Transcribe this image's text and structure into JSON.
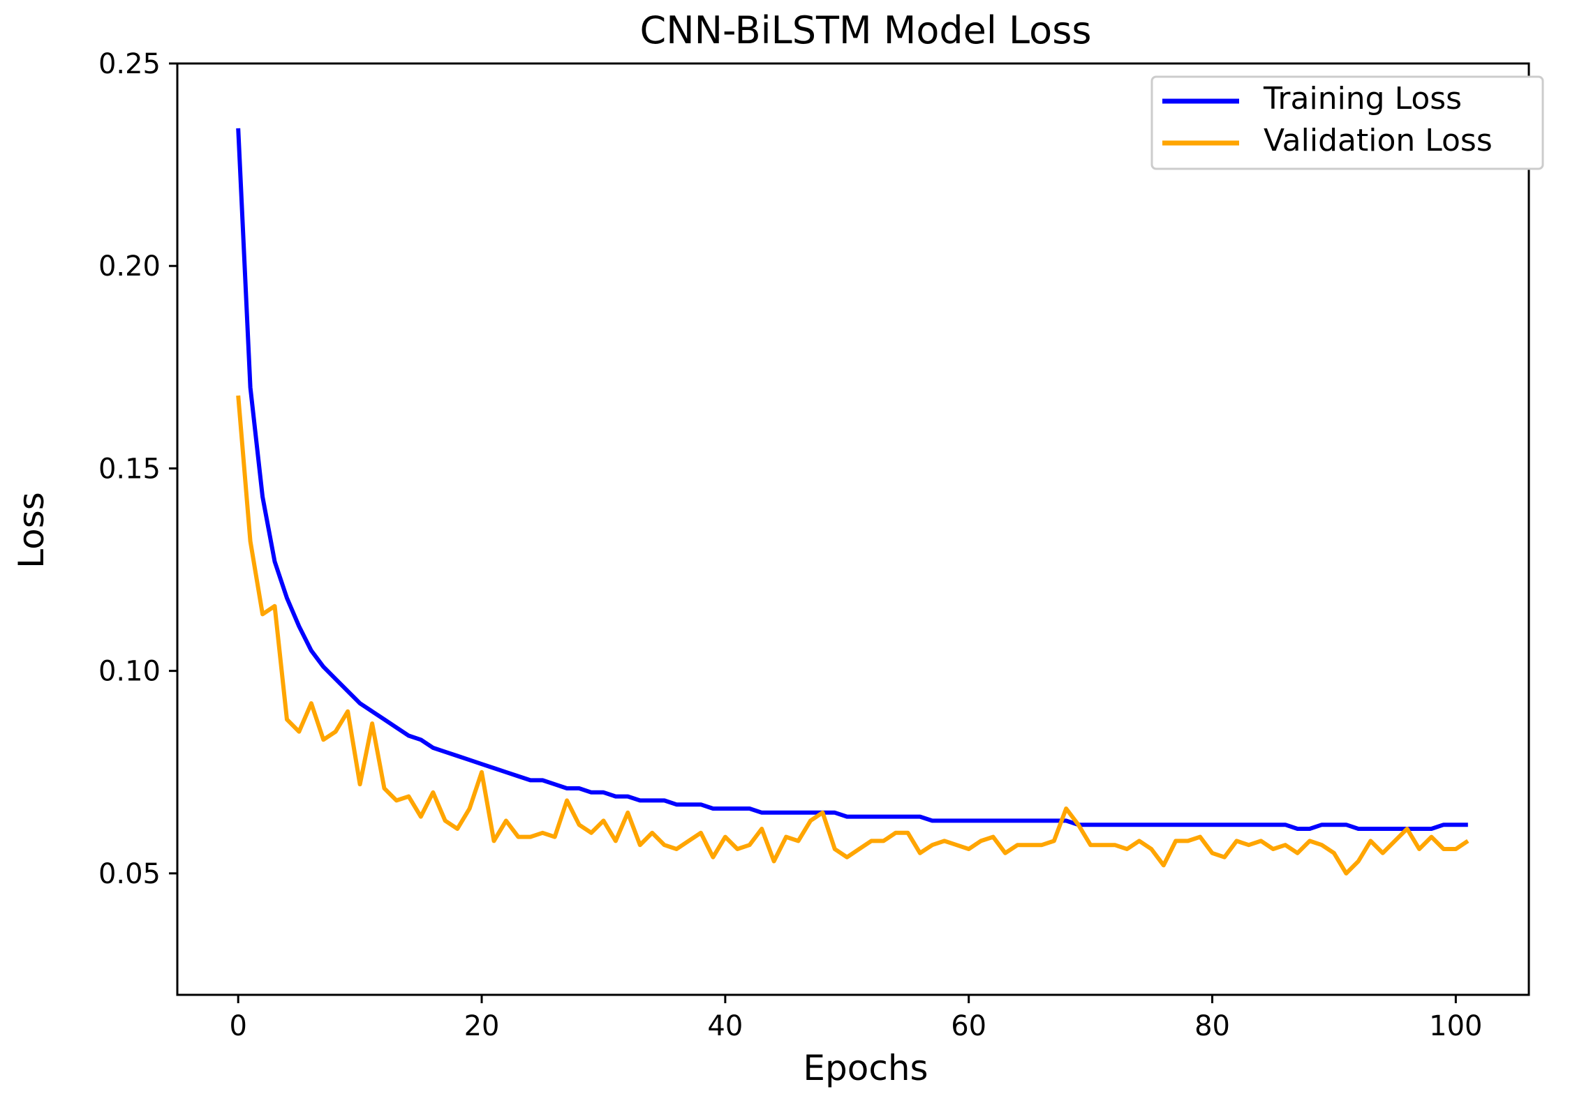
{
  "chart_data": {
    "type": "line",
    "title": "CNN-BiLSTM Model Loss",
    "xlabel": "Epochs",
    "ylabel": "Loss",
    "xlim": [
      -5,
      106
    ],
    "ylim": [
      0.02,
      0.25
    ],
    "xticks": [
      0,
      20,
      40,
      60,
      80,
      100
    ],
    "xtick_labels": [
      "0",
      "20",
      "40",
      "60",
      "80",
      "100"
    ],
    "yticks": [
      0.05,
      0.1,
      0.15,
      0.2,
      0.25
    ],
    "ytick_labels": [
      "0.05",
      "0.10",
      "0.15",
      "0.20",
      "0.25"
    ],
    "grid": false,
    "legend_position": "top-right",
    "series": [
      {
        "name": "Training Loss",
        "color": "#0000ff",
        "x": [
          0,
          1,
          2,
          3,
          4,
          5,
          6,
          7,
          8,
          9,
          10,
          11,
          12,
          13,
          14,
          15,
          16,
          17,
          18,
          19,
          20,
          21,
          22,
          23,
          24,
          25,
          26,
          27,
          28,
          29,
          30,
          31,
          32,
          33,
          34,
          35,
          36,
          37,
          38,
          39,
          40,
          41,
          42,
          43,
          44,
          45,
          46,
          47,
          48,
          49,
          50,
          51,
          52,
          53,
          54,
          55,
          56,
          57,
          58,
          59,
          60,
          61,
          62,
          63,
          64,
          65,
          66,
          67,
          68,
          69,
          70,
          71,
          72,
          73,
          74,
          75,
          76,
          77,
          78,
          79,
          80,
          81,
          82,
          83,
          84,
          85,
          86,
          87,
          88,
          89,
          90,
          91,
          92,
          93,
          94,
          95,
          96,
          97,
          98,
          99,
          100,
          101
        ],
        "values": [
          0.234,
          0.17,
          0.143,
          0.127,
          0.118,
          0.111,
          0.105,
          0.101,
          0.098,
          0.095,
          0.092,
          0.09,
          0.088,
          0.086,
          0.084,
          0.083,
          0.081,
          0.08,
          0.079,
          0.078,
          0.077,
          0.076,
          0.075,
          0.074,
          0.073,
          0.073,
          0.072,
          0.071,
          0.071,
          0.07,
          0.07,
          0.069,
          0.069,
          0.068,
          0.068,
          0.068,
          0.067,
          0.067,
          0.067,
          0.066,
          0.066,
          0.066,
          0.066,
          0.065,
          0.065,
          0.065,
          0.065,
          0.065,
          0.065,
          0.065,
          0.064,
          0.064,
          0.064,
          0.064,
          0.064,
          0.064,
          0.064,
          0.063,
          0.063,
          0.063,
          0.063,
          0.063,
          0.063,
          0.063,
          0.063,
          0.063,
          0.063,
          0.063,
          0.063,
          0.062,
          0.062,
          0.062,
          0.062,
          0.062,
          0.062,
          0.062,
          0.062,
          0.062,
          0.062,
          0.062,
          0.062,
          0.062,
          0.062,
          0.062,
          0.062,
          0.062,
          0.062,
          0.061,
          0.061,
          0.062,
          0.062,
          0.062,
          0.061,
          0.061,
          0.061,
          0.061,
          0.061,
          0.061,
          0.061,
          0.062,
          0.062,
          0.062
        ]
      },
      {
        "name": "Validation Loss",
        "color": "#ffa500",
        "x": [
          0,
          1,
          2,
          3,
          4,
          5,
          6,
          7,
          8,
          9,
          10,
          11,
          12,
          13,
          14,
          15,
          16,
          17,
          18,
          19,
          20,
          21,
          22,
          23,
          24,
          25,
          26,
          27,
          28,
          29,
          30,
          31,
          32,
          33,
          34,
          35,
          36,
          37,
          38,
          39,
          40,
          41,
          42,
          43,
          44,
          45,
          46,
          47,
          48,
          49,
          50,
          51,
          52,
          53,
          54,
          55,
          56,
          57,
          58,
          59,
          60,
          61,
          62,
          63,
          64,
          65,
          66,
          67,
          68,
          69,
          70,
          71,
          72,
          73,
          74,
          75,
          76,
          77,
          78,
          79,
          80,
          81,
          82,
          83,
          84,
          85,
          86,
          87,
          88,
          89,
          90,
          91,
          92,
          93,
          94,
          95,
          96,
          97,
          98,
          99,
          100,
          101
        ],
        "values": [
          0.168,
          0.132,
          0.114,
          0.116,
          0.088,
          0.085,
          0.092,
          0.083,
          0.085,
          0.09,
          0.072,
          0.087,
          0.071,
          0.068,
          0.069,
          0.064,
          0.07,
          0.063,
          0.061,
          0.066,
          0.075,
          0.058,
          0.063,
          0.059,
          0.059,
          0.06,
          0.059,
          0.068,
          0.062,
          0.06,
          0.063,
          0.058,
          0.065,
          0.057,
          0.06,
          0.057,
          0.056,
          0.058,
          0.06,
          0.054,
          0.059,
          0.056,
          0.057,
          0.061,
          0.053,
          0.059,
          0.058,
          0.063,
          0.065,
          0.056,
          0.054,
          0.056,
          0.058,
          0.058,
          0.06,
          0.06,
          0.055,
          0.057,
          0.058,
          0.057,
          0.056,
          0.058,
          0.059,
          0.055,
          0.057,
          0.057,
          0.057,
          0.058,
          0.066,
          0.062,
          0.057,
          0.057,
          0.057,
          0.056,
          0.058,
          0.056,
          0.052,
          0.058,
          0.058,
          0.059,
          0.055,
          0.054,
          0.058,
          0.057,
          0.058,
          0.056,
          0.057,
          0.055,
          0.058,
          0.057,
          0.055,
          0.05,
          0.053,
          0.058,
          0.055,
          0.058,
          0.061,
          0.056,
          0.059,
          0.056,
          0.056,
          0.058
        ]
      }
    ]
  }
}
